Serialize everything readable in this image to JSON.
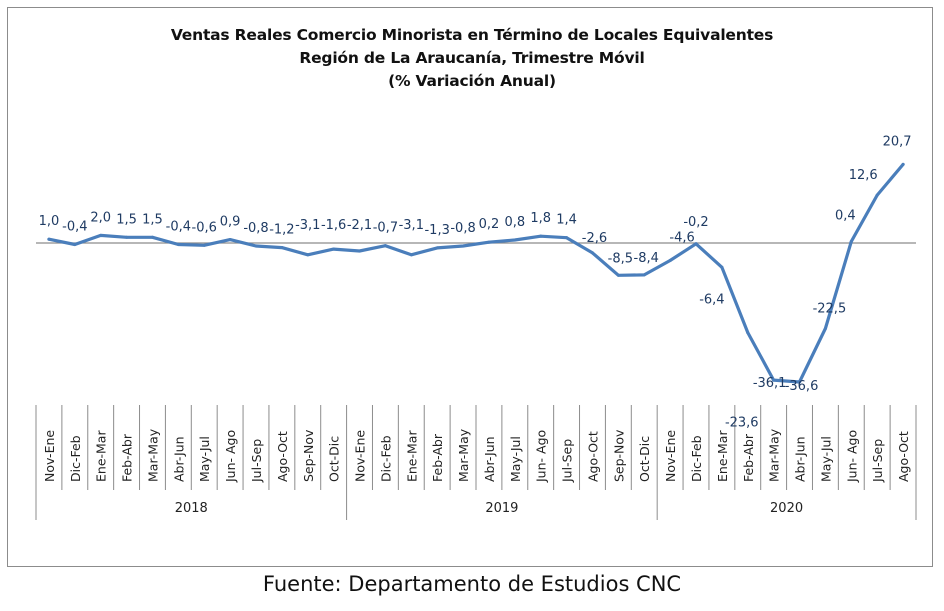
{
  "chart_data": {
    "type": "line",
    "title": [
      "Ventas Reales Comercio Minorista  en Término de Locales Equivalentes",
      "Región de La Araucanía, Trimestre Móvil",
      "(% Variación Anual)"
    ],
    "series": [
      {
        "color": "#4a7ebb",
        "categories": [
          "Nov-Ene",
          "Dic-Feb",
          "Ene-Mar",
          "Feb-Abr",
          "Mar-May",
          "Abr-Jun",
          "May-Jul",
          "Jun- Ago",
          "Jul-Sep",
          "Ago-Oct",
          "Sep-Nov",
          "Oct-Dic",
          "Nov-Ene",
          "Dic-Feb",
          "Ene-Mar",
          "Feb-Abr",
          "Mar-May",
          "Abr-Jun",
          "May-Jul",
          "Jun- Ago",
          "Jul-Sep",
          "Ago-Oct",
          "Sep-Nov",
          "Oct-Dic",
          "Nov-Ene",
          "Dic-Feb",
          "Ene-Mar",
          "Feb-Abr",
          "Mar-May",
          "Abr-Jun",
          "May-Jul",
          "Jun- Ago",
          "Jul-Sep",
          "Ago-Oct"
        ],
        "values": [
          1.0,
          -0.4,
          2.0,
          1.5,
          1.5,
          -0.4,
          -0.6,
          0.9,
          -0.8,
          -1.2,
          -3.1,
          -1.6,
          -2.1,
          -0.7,
          -3.1,
          -1.3,
          -0.8,
          0.2,
          0.8,
          1.8,
          1.4,
          -2.6,
          -8.5,
          -8.4,
          -4.6,
          -0.2,
          -6.4,
          -23.6,
          -36.1,
          -36.6,
          -22.5,
          0.4,
          12.6,
          20.7
        ],
        "labels": [
          "1,0",
          "-0,4",
          "2,0",
          "1,5",
          "1,5",
          "-0,4",
          "-0,6",
          "0,9",
          "-0,8",
          "-1,2",
          "-3,1",
          "-1,6",
          "-2,1",
          "-0,7",
          "-3,1",
          "-1,3",
          "-0,8",
          "0,2",
          "0,8",
          "1,8",
          "1,4",
          "-2,6",
          "-8,5",
          "-8,4",
          "-4,6",
          "-0,2",
          "-6,4",
          "-23,6",
          "-36,1",
          "-36,6",
          "-22,5",
          "0,4",
          "12,6",
          "20,7"
        ]
      }
    ],
    "groups": [
      {
        "label": "2018",
        "count": 12
      },
      {
        "label": "2019",
        "count": 12
      },
      {
        "label": "2020",
        "count": 10
      }
    ],
    "ylim": [
      -38,
      22
    ],
    "grid": false,
    "legend": "none"
  },
  "footer": {
    "source": "Fuente: Departamento de Estudios CNC"
  }
}
